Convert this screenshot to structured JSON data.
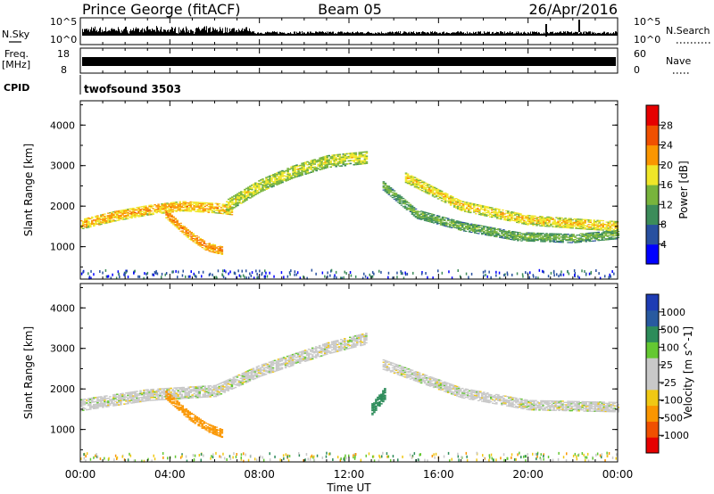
{
  "header": {
    "station": "Prince George (fitACF)",
    "beam": "Beam 05",
    "date": "26/Apr/2016"
  },
  "summary": {
    "nsky_label": "N.Sky",
    "nsky_ticks": [
      "10^5",
      "10^0"
    ],
    "nsearch_label": "N.Search",
    "freq_label_1": "Freq.",
    "freq_label_2": "[MHz]",
    "freq_ticks": [
      "18",
      "8"
    ],
    "nave_label": "Nave",
    "nave_ticks": [
      "60",
      "0"
    ],
    "cpid_label": "CPID",
    "cpid_value": "twofsound 3503"
  },
  "colors": {
    "power_scale": [
      "#0000ff",
      "#2850a0",
      "#3c8c5a",
      "#78b43c",
      "#f0e628",
      "#fa9600",
      "#f05000",
      "#e60000"
    ],
    "velocity_scale": [
      "#e60000",
      "#f05000",
      "#fa9600",
      "#f0c814",
      "#c8c8c8",
      "#c8c8c8",
      "#64c832",
      "#2d8c5a",
      "#285aa0",
      "#1e3cb4"
    ]
  },
  "chart_data": [
    {
      "type": "heatmap",
      "panel": "power",
      "xlabel": "",
      "ylabel": "Slant Range [km]",
      "x_unit": "hours UT",
      "xlim": [
        0,
        24
      ],
      "ylim": [
        200,
        4600
      ],
      "y_ticks": [
        "1000",
        "2000",
        "3000",
        "4000"
      ],
      "colorbar_label": "Power [dB]",
      "colorbar_ticks": [
        "4",
        "8",
        "12",
        "16",
        "20",
        "24",
        "28"
      ],
      "colorbar_range": [
        0,
        32
      ],
      "echo_bands": [
        {
          "t": [
            0.0,
            1.5,
            3.0,
            4.5,
            6.0,
            6.8
          ],
          "range": [
            1550,
            1750,
            1900,
            2000,
            1950,
            1900
          ],
          "width": 260,
          "level": 22
        },
        {
          "t": [
            6.5,
            8.0,
            9.5,
            11.0,
            12.8
          ],
          "range": [
            2000,
            2500,
            2850,
            3100,
            3200
          ],
          "width": 320,
          "level": 18
        },
        {
          "t": [
            3.8,
            4.8,
            5.6,
            6.3
          ],
          "range": [
            1800,
            1300,
            1000,
            900
          ],
          "width": 220,
          "level": 24
        },
        {
          "t": [
            13.5,
            15.0,
            17.0,
            19.5,
            22.0,
            24.0
          ],
          "range": [
            2500,
            1800,
            1500,
            1250,
            1200,
            1300
          ],
          "width": 230,
          "level": 14
        },
        {
          "t": [
            14.5,
            17.0,
            20.0,
            22.5,
            24.0
          ],
          "range": [
            2700,
            2000,
            1650,
            1550,
            1500
          ],
          "width": 260,
          "level": 20
        }
      ]
    },
    {
      "type": "heatmap",
      "panel": "velocity",
      "xlabel": "Time UT",
      "ylabel": "Slant Range [km]",
      "x_unit": "hours UT",
      "xlim": [
        0,
        24
      ],
      "ylim": [
        200,
        4600
      ],
      "x_ticks": [
        "00:00",
        "04:00",
        "08:00",
        "12:00",
        "16:00",
        "20:00",
        "00:00"
      ],
      "y_ticks": [
        "1000",
        "2000",
        "3000",
        "4000"
      ],
      "colorbar_label": "Velocity [m s^-1]",
      "colorbar_ticks": [
        "-1000",
        "-500",
        "-100",
        "-25",
        "25",
        "100",
        "500",
        "1000"
      ],
      "echo_bands": [
        {
          "t": [
            0.0,
            3.0,
            6.0,
            8.0,
            11.0,
            12.8
          ],
          "range": [
            1600,
            1850,
            1950,
            2450,
            3000,
            3250
          ],
          "width": 300,
          "velocity": 0
        },
        {
          "t": [
            13.5,
            17.0,
            20.0,
            24.0
          ],
          "range": [
            2600,
            1900,
            1600,
            1550
          ],
          "width": 260,
          "velocity": 0
        },
        {
          "t": [
            3.8,
            4.8,
            5.6,
            6.3
          ],
          "range": [
            1850,
            1350,
            1050,
            900
          ],
          "width": 220,
          "velocity": -400
        },
        {
          "t": [
            13.0,
            13.6
          ],
          "range": [
            1500,
            1900
          ],
          "width": 300,
          "velocity": 300
        }
      ]
    }
  ]
}
